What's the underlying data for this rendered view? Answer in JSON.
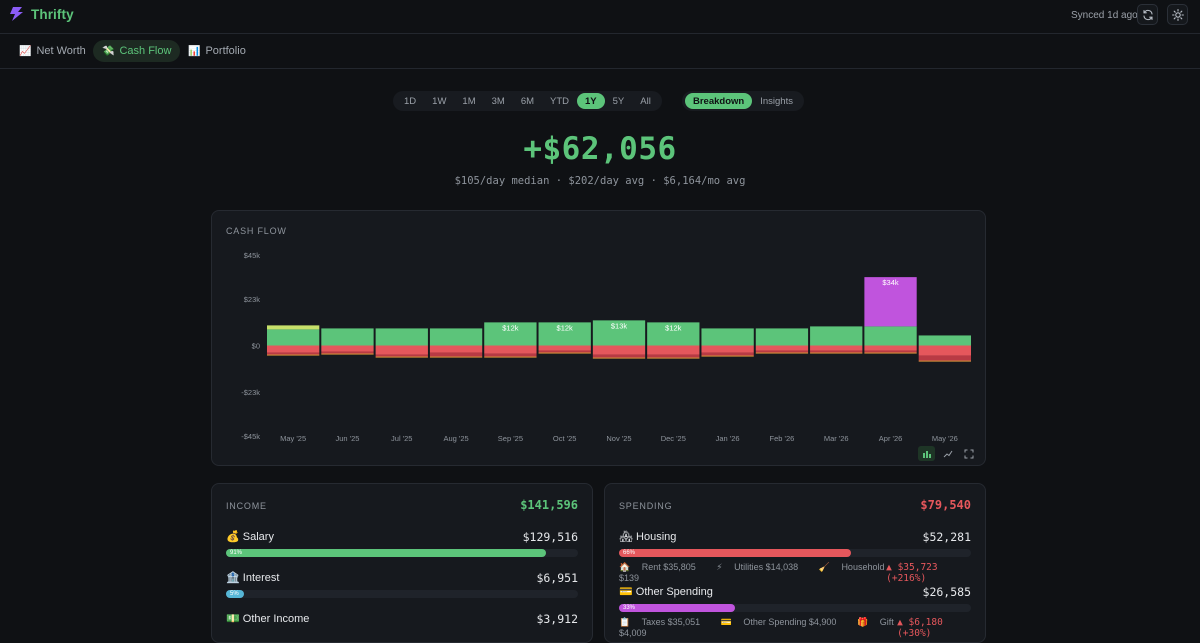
{
  "app": {
    "name": "Thrifty",
    "sync_status": "Synced 1d ago",
    "accent": "#5cc47a"
  },
  "nav": {
    "tabs": [
      {
        "label": "Net Worth",
        "icon": "📈"
      },
      {
        "label": "Cash Flow",
        "icon": "💸"
      },
      {
        "label": "Portfolio",
        "icon": "📊"
      }
    ],
    "active": "Cash Flow"
  },
  "range": {
    "options": [
      "1D",
      "1W",
      "1M",
      "3M",
      "6M",
      "YTD",
      "1Y",
      "5Y",
      "All"
    ],
    "selected": "1Y"
  },
  "view": {
    "options": [
      "Breakdown",
      "Insights"
    ],
    "selected": "Breakdown"
  },
  "summary": {
    "total": "+$62,056",
    "median_per_day": "$105/day median",
    "avg_per_day": "$202/day avg",
    "avg_per_month": "$6,164/mo avg",
    "separator": "·"
  },
  "chart": {
    "title": "CASH FLOW"
  },
  "chart_data": {
    "type": "bar",
    "categories": [
      "May '25",
      "Jun '25",
      "Jul '25",
      "Aug '25",
      "Sep '25",
      "Oct '25",
      "Nov '25",
      "Dec '25",
      "Jan '26",
      "Feb '26",
      "Mar '26",
      "Apr '26",
      "May '26"
    ],
    "ytick_labels": [
      "$45k",
      "$23k",
      "$0",
      "-$23k",
      "-$45k"
    ],
    "yticks": [
      45000,
      23000,
      0,
      -23000,
      -45000
    ],
    "ylim": [
      -45000,
      45000
    ],
    "bar_labels": [
      "",
      "",
      "",
      "",
      "$12k",
      "$12k",
      "$13k",
      "$12k",
      "",
      "",
      "",
      "$34k",
      ""
    ],
    "series": [
      {
        "name": "Salary",
        "color": "#5cc47a",
        "values": [
          8000,
          8500,
          8500,
          8500,
          11500,
          11500,
          12500,
          11500,
          8500,
          8500,
          9500,
          9500,
          5000
        ]
      },
      {
        "name": "Interest",
        "color": "#c6e06a",
        "values": [
          2000,
          0,
          0,
          0,
          0,
          0,
          0,
          0,
          0,
          0,
          0,
          0,
          0
        ]
      },
      {
        "name": "Other Income",
        "color": "#c054dd",
        "values": [
          0,
          0,
          0,
          0,
          0,
          0,
          0,
          0,
          0,
          0,
          0,
          24500,
          0
        ]
      },
      {
        "name": "Housing",
        "color": "#e5575c",
        "values": [
          -3500,
          -3000,
          -4500,
          -3500,
          -4000,
          -2500,
          -4500,
          -4500,
          -3500,
          -2500,
          -2500,
          -2500,
          -5000
        ]
      },
      {
        "name": "Other Spending",
        "color": "#b83a44",
        "values": [
          -1000,
          -1000,
          -1000,
          -2000,
          -1500,
          -1000,
          -1500,
          -1500,
          -1500,
          -1000,
          -1000,
          -1000,
          -2500
        ]
      },
      {
        "name": "Gift",
        "color": "#e89a3c",
        "values": [
          -500,
          -500,
          -500,
          -500,
          -500,
          -500,
          -500,
          -500,
          -500,
          -500,
          -500,
          -500,
          -500
        ]
      }
    ],
    "grid": false,
    "legend": "none"
  },
  "income": {
    "title": "INCOME",
    "total": "$141,596",
    "rows": [
      {
        "icon": "💰",
        "label": "Salary",
        "amount": "$129,516",
        "pct_label": "91%",
        "pct": 0.91,
        "color": "#5cc47a"
      },
      {
        "icon": "🏦",
        "label": "Interest",
        "amount": "$6,951",
        "pct_label": "5%",
        "pct": 0.05,
        "color": "#56b6d6"
      },
      {
        "icon": "💵",
        "label": "Other Income",
        "amount": "$3,912"
      }
    ]
  },
  "spending": {
    "title": "SPENDING",
    "total": "$79,540",
    "rows": [
      {
        "icon": "🏘",
        "label": "Housing",
        "amount": "$52,281",
        "pct_label": "66%",
        "pct": 0.66,
        "color": "#e5575c",
        "subs": [
          {
            "icon": "🏠",
            "text": "Rent $35,805"
          },
          {
            "icon": "⚡",
            "text": "Utilities $14,038"
          },
          {
            "icon": "🧹",
            "text": "Household $139"
          }
        ],
        "delta": "▲ $35,723 (+216%)"
      },
      {
        "icon": "💳",
        "label": "Other Spending",
        "amount": "$26,585",
        "pct_label": "33%",
        "pct": 0.33,
        "color": "#c054dd",
        "subs": [
          {
            "icon": "📋",
            "text": "Taxes $35,051"
          },
          {
            "icon": "💳",
            "text": "Other Spending $4,900"
          },
          {
            "icon": "🎁",
            "text": "Gift $4,009"
          }
        ],
        "delta": "▲ $6,180 (+30%)"
      }
    ]
  }
}
